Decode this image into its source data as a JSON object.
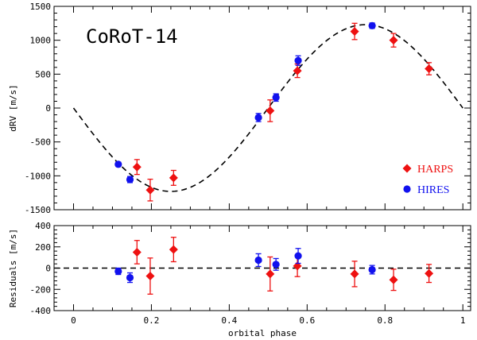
{
  "chart_data": {
    "type": "scatter",
    "title": "CoRoT-14",
    "xlabel": "orbital phase",
    "xlim": [
      -0.05,
      1.02
    ],
    "xticks": [
      "0",
      "0.2",
      "0.4",
      "0.6",
      "0.8",
      "1"
    ],
    "xtick_values": [
      0,
      0.2,
      0.4,
      0.6,
      0.8,
      1.0
    ],
    "colors": {
      "harps": "#ee1111",
      "hires": "#1111ee",
      "model": "#000000"
    },
    "panels": {
      "rv": {
        "ylabel": "dRV [m/s]",
        "ylim": [
          -1500,
          1500
        ],
        "yticks": [
          "-1500",
          "-1000",
          "-500",
          "0",
          "500",
          "1000",
          "1500"
        ],
        "ytick_values": [
          -1500,
          -1000,
          -500,
          0,
          500,
          1000,
          1500
        ],
        "model": {
          "type": "sine",
          "amplitude": 1230,
          "offset": 0,
          "sign": -1
        },
        "series": [
          {
            "name": "HARPS",
            "marker": "diamond",
            "points": [
              {
                "x": 0.163,
                "y": -870,
                "err": 110
              },
              {
                "x": 0.197,
                "y": -1210,
                "err": 160
              },
              {
                "x": 0.257,
                "y": -1030,
                "err": 110
              },
              {
                "x": 0.505,
                "y": -40,
                "err": 160
              },
              {
                "x": 0.575,
                "y": 550,
                "err": 100
              },
              {
                "x": 0.722,
                "y": 1130,
                "err": 120
              },
              {
                "x": 0.822,
                "y": 1000,
                "err": 100
              },
              {
                "x": 0.913,
                "y": 580,
                "err": 90
              }
            ]
          },
          {
            "name": "HIRES",
            "marker": "circle",
            "points": [
              {
                "x": 0.115,
                "y": -830,
                "err": 30
              },
              {
                "x": 0.145,
                "y": -1055,
                "err": 45
              },
              {
                "x": 0.475,
                "y": -140,
                "err": 60
              },
              {
                "x": 0.52,
                "y": 155,
                "err": 55
              },
              {
                "x": 0.577,
                "y": 700,
                "err": 70
              },
              {
                "x": 0.767,
                "y": 1215,
                "err": 40
              }
            ]
          }
        ]
      },
      "residuals": {
        "ylabel": "Residuals [m/s]",
        "ylim": [
          -400,
          400
        ],
        "yticks": [
          "-400",
          "-200",
          "0",
          "200",
          "400"
        ],
        "ytick_values": [
          -400,
          -200,
          0,
          200,
          400
        ],
        "series": [
          {
            "name": "HARPS",
            "marker": "diamond",
            "points": [
              {
                "x": 0.163,
                "y": 150,
                "err": 110
              },
              {
                "x": 0.197,
                "y": -75,
                "err": 170
              },
              {
                "x": 0.257,
                "y": 175,
                "err": 115
              },
              {
                "x": 0.505,
                "y": -55,
                "err": 160
              },
              {
                "x": 0.575,
                "y": 20,
                "err": 100
              },
              {
                "x": 0.722,
                "y": -55,
                "err": 120
              },
              {
                "x": 0.822,
                "y": -110,
                "err": 100
              },
              {
                "x": 0.913,
                "y": -50,
                "err": 85
              }
            ]
          },
          {
            "name": "HIRES",
            "marker": "circle",
            "points": [
              {
                "x": 0.115,
                "y": -30,
                "err": 30
              },
              {
                "x": 0.145,
                "y": -90,
                "err": 45
              },
              {
                "x": 0.475,
                "y": 75,
                "err": 60
              },
              {
                "x": 0.52,
                "y": 35,
                "err": 55
              },
              {
                "x": 0.577,
                "y": 115,
                "err": 70
              },
              {
                "x": 0.767,
                "y": -15,
                "err": 40
              }
            ]
          }
        ]
      }
    },
    "legend": [
      {
        "label": "HARPS",
        "series": "harps",
        "marker": "diamond"
      },
      {
        "label": "HIRES",
        "series": "hires",
        "marker": "circle"
      }
    ]
  }
}
